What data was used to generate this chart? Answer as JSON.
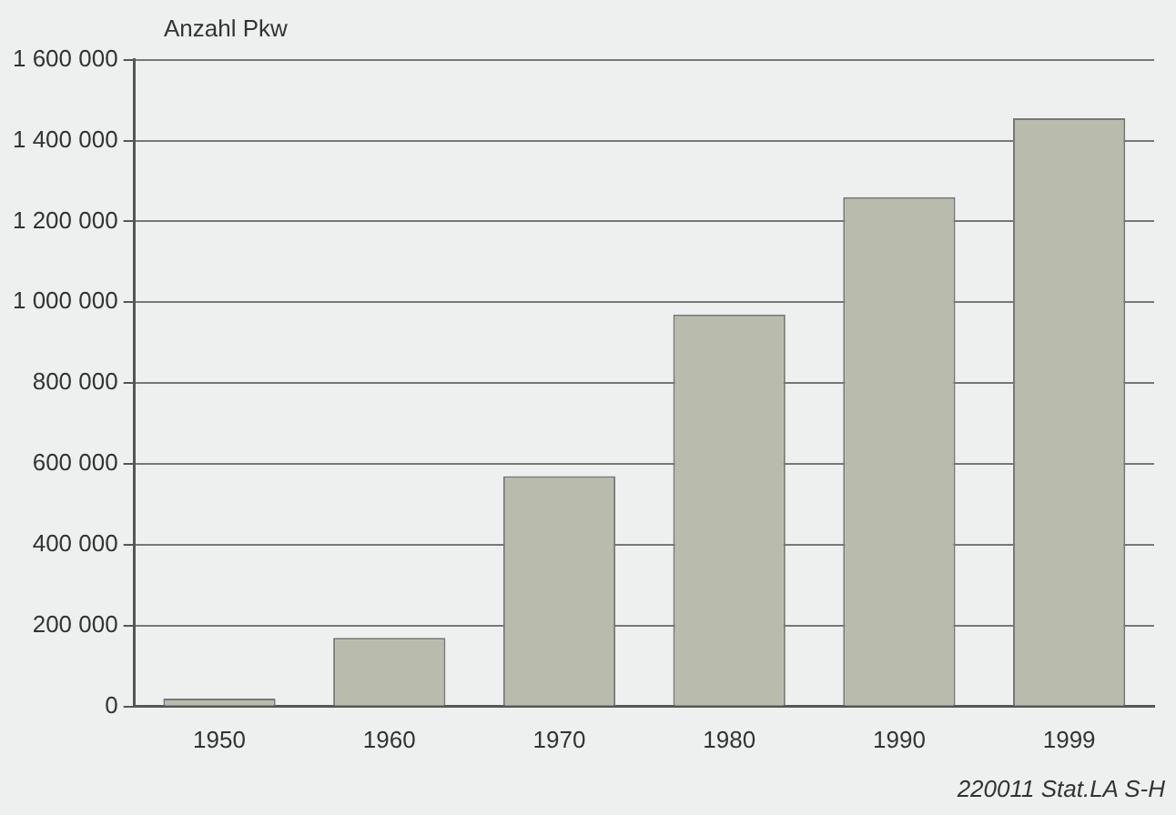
{
  "chart_data": {
    "type": "bar",
    "ylabel": "Anzahl Pkw",
    "categories": [
      "1950",
      "1960",
      "1970",
      "1980",
      "1990",
      "1999"
    ],
    "values": [
      20000,
      170000,
      570000,
      970000,
      1260000,
      1455000
    ],
    "color": "#b9bcad",
    "ylim": [
      0,
      1600000
    ],
    "yticks": [
      0,
      {
        "value": 200000,
        "label": "200 000"
      },
      {
        "value": 400000,
        "label": "400 000"
      },
      {
        "value": 600000,
        "label": "600 000"
      },
      {
        "value": 800000,
        "label": "800 000"
      },
      {
        "value": 1000000,
        "label": "1 000 000"
      },
      {
        "value": 1200000,
        "label": "1 200 000"
      },
      {
        "value": 1400000,
        "label": "1 400 000"
      },
      {
        "value": 1600000,
        "label": "1 600 000"
      }
    ],
    "grid": "y",
    "legend": false,
    "annotations": [
      "220011 Stat.LA S-H"
    ]
  }
}
